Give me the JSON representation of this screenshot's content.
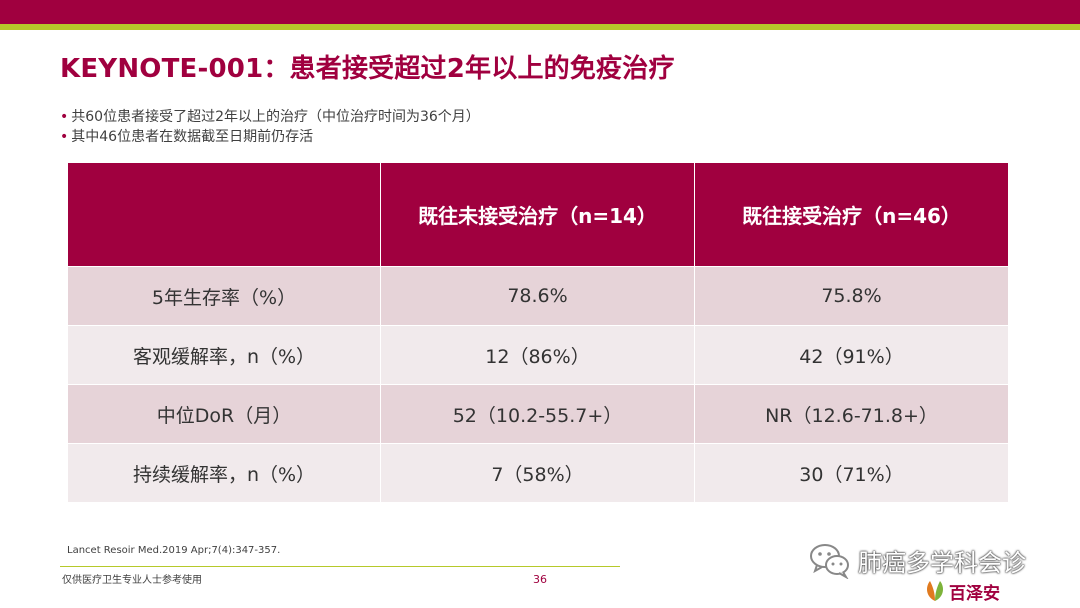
{
  "slide": {
    "title": "KEYNOTE-001：患者接受超过2年以上的免疫治疗",
    "bullets": [
      "共60位患者接受了超过2年以上的治疗（中位治疗时间为36个月）",
      "其中46位患者在数据截至日期前仍存活"
    ],
    "bullet_symbol": "•",
    "table": {
      "headers": [
        "",
        "既往未接受治疗（n=14）",
        "既往接受治疗（n=46）"
      ],
      "rows": [
        {
          "label": "5年生存率（%）",
          "naive": "78.6%",
          "treated": "75.8%"
        },
        {
          "label": "客观缓解率，n（%）",
          "naive": "12（86%）",
          "treated": "42（91%）"
        },
        {
          "label": "中位DoR（月）",
          "naive": "52（10.2-55.7+）",
          "treated": "NR（12.6-71.8+）"
        },
        {
          "label": "持续缓解率，n（%）",
          "naive": "7（58%）",
          "treated": "30（71%）"
        }
      ]
    },
    "reference": "Lancet Resoir Med.2019 Apr;7(4):347-357.",
    "disclaimer": "仅供医疗卫生专业人士参考使用",
    "page_number": "36"
  },
  "watermark": {
    "text": "肺癌多学科会诊",
    "icon": "wechat-icon"
  },
  "brand": {
    "name": "百泽安",
    "icon": "leaf-logo-icon"
  },
  "colors": {
    "primary": "#a0003f",
    "accent": "#b6c92a",
    "row_dark": "#e6d3d8",
    "row_light": "#f1eaec"
  }
}
